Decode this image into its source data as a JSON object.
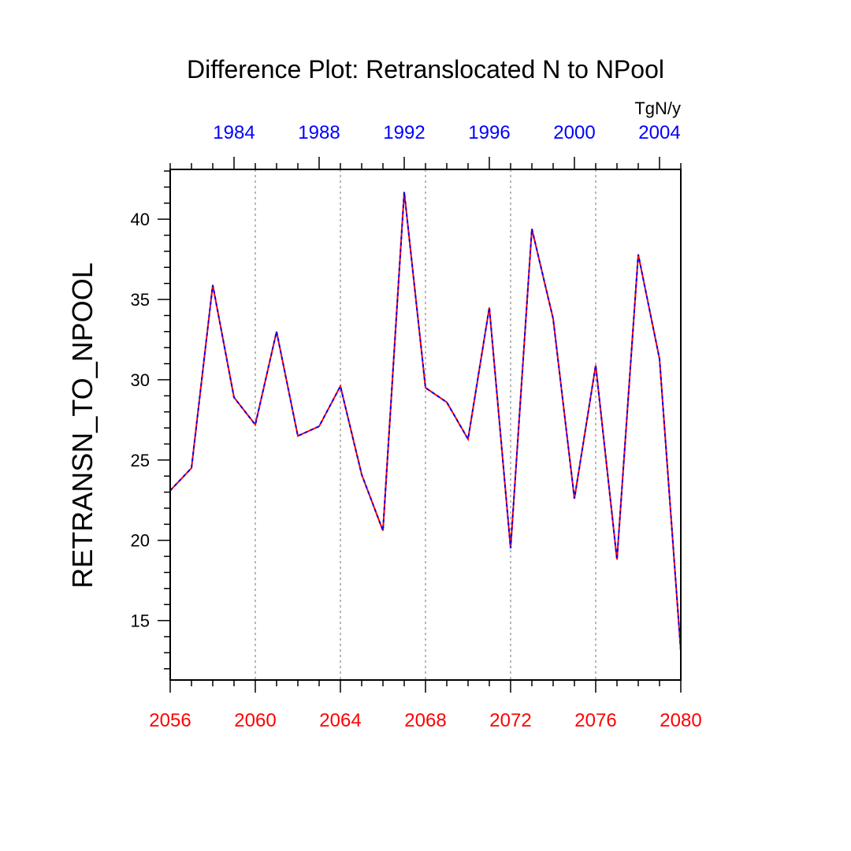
{
  "colors": {
    "bottom_axis": "#ff0000",
    "top_axis": "#0000ff",
    "series_red": "#ff0000",
    "series_blue": "#0000ff",
    "grid": "#a0a0a0",
    "frame": "#000000"
  },
  "chart_data": {
    "type": "line",
    "title": "Difference Plot: Retranslocated N to NPool",
    "ylabel": "RETRANSN_TO_NPOOL",
    "units": "TgN/y",
    "xlim": [
      2056,
      2080
    ],
    "ylim": [
      11.3,
      43.1
    ],
    "yticks": [
      "15",
      "20",
      "25",
      "30",
      "35",
      "40"
    ],
    "ytick_values": [
      15,
      20,
      25,
      30,
      35,
      40
    ],
    "x_bottom_ticks": [
      "2056",
      "2060",
      "2064",
      "2068",
      "2072",
      "2076",
      "2080"
    ],
    "x_bottom_values": [
      2056,
      2060,
      2064,
      2068,
      2072,
      2076,
      2080
    ],
    "x_top_ticks": [
      "1984",
      "1988",
      "1992",
      "1996",
      "2000",
      "2004"
    ],
    "x_top_positions_bottom_years": [
      2059,
      2063,
      2067,
      2071,
      2075,
      2079
    ],
    "grid_x": [
      2060,
      2064,
      2068,
      2072,
      2076
    ],
    "x": [
      2056,
      2057,
      2058,
      2059,
      2060,
      2061,
      2062,
      2063,
      2064,
      2065,
      2066,
      2067,
      2068,
      2069,
      2070,
      2071,
      2072,
      2073,
      2074,
      2075,
      2076,
      2077,
      2078,
      2079,
      2080
    ],
    "series": [
      {
        "name": "red dashed",
        "values": [
          23.1,
          24.5,
          35.9,
          28.9,
          27.2,
          33.0,
          26.5,
          27.1,
          29.6,
          24.1,
          20.6,
          41.7,
          29.5,
          28.6,
          26.3,
          34.5,
          19.5,
          39.4,
          33.8,
          22.6,
          30.9,
          18.8,
          37.8,
          31.3,
          13.1
        ]
      },
      {
        "name": "blue dashed",
        "values": [
          23.1,
          24.5,
          35.9,
          28.9,
          27.2,
          33.0,
          26.5,
          27.1,
          29.6,
          24.1,
          20.6,
          41.7,
          29.5,
          28.6,
          26.3,
          34.5,
          19.5,
          39.4,
          33.8,
          22.6,
          30.9,
          18.8,
          37.8,
          31.3,
          13.1
        ]
      }
    ]
  }
}
